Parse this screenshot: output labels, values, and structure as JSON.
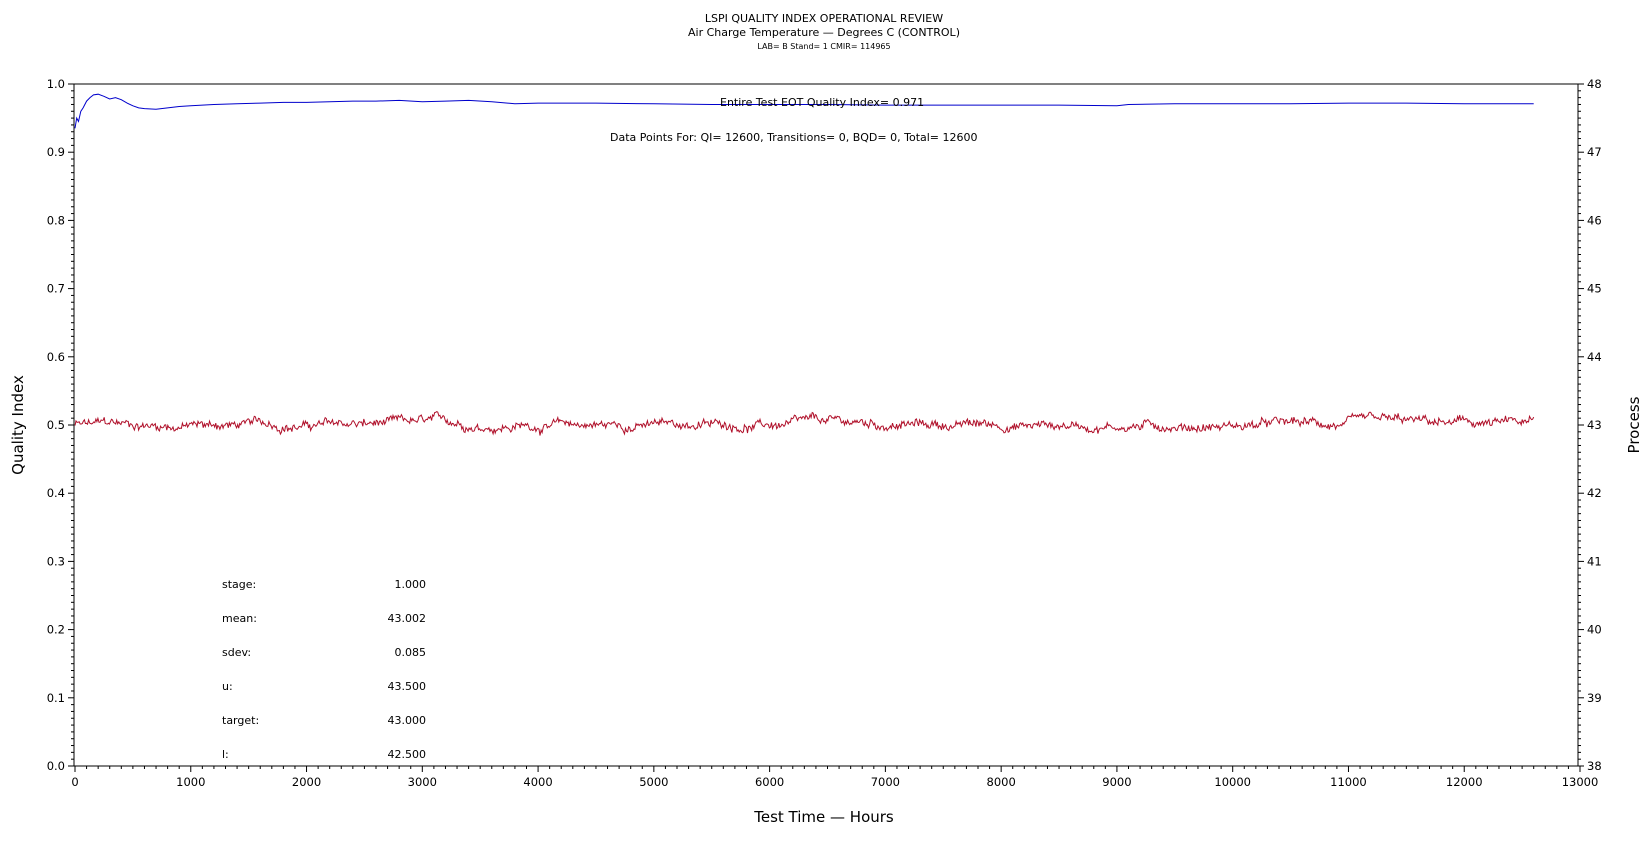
{
  "chart_data": {
    "type": "line",
    "title": "LSPI QUALITY INDEX OPERATIONAL REVIEW",
    "subtitle": "Air Charge Temperature — Degrees C (CONTROL)",
    "subsubtitle": "LAB= B Stand= 1 CMIR= 114965",
    "xlabel": "Test Time — Hours",
    "ylabel_left": "Quality Index",
    "ylabel_right": "Process",
    "xlim": [
      0,
      13000
    ],
    "ylim_left": [
      0.0,
      1.0
    ],
    "ylim_right": [
      38,
      48
    ],
    "x_ticks": [
      "0",
      "1000",
      "2000",
      "3000",
      "4000",
      "5000",
      "6000",
      "7000",
      "8000",
      "9000",
      "10000",
      "11000",
      "12000",
      "13000"
    ],
    "y_left_ticks": [
      "0.0",
      "0.1",
      "0.2",
      "0.3",
      "0.4",
      "0.5",
      "0.6",
      "0.7",
      "0.8",
      "0.9",
      "1.0"
    ],
    "y_right_ticks": [
      "38",
      "39",
      "40",
      "41",
      "42",
      "43",
      "44",
      "45",
      "46",
      "47",
      "48"
    ],
    "grid": false,
    "annotations": {
      "eot_quality_index": "Entire Test EOT Quality Index=   0.971",
      "data_points": "Data Points For: QI= 12600, Transitions=      0, BQD=      0, Total= 12600"
    },
    "stats": [
      {
        "label": "stage:",
        "value": "1.000"
      },
      {
        "label": "mean:",
        "value": "43.002"
      },
      {
        "label": "sdev:",
        "value": "0.085"
      },
      {
        "label": "u:",
        "value": "43.500"
      },
      {
        "label": "target:",
        "value": "43.000"
      },
      {
        "label": "l:",
        "value": "42.500"
      }
    ],
    "series": [
      {
        "axis": "left",
        "color": "#0000cc",
        "x": [
          0,
          15,
          30,
          50,
          70,
          100,
          130,
          160,
          200,
          250,
          300,
          350,
          400,
          450,
          500,
          550,
          600,
          700,
          800,
          900,
          1000,
          1200,
          1400,
          1600,
          1800,
          2000,
          2200,
          2400,
          2600,
          2800,
          3000,
          3200,
          3400,
          3600,
          3800,
          4000,
          4500,
          5000,
          5500,
          6000,
          6500,
          7000,
          7500,
          8000,
          8500,
          9000,
          9100,
          9500,
          10000,
          10500,
          11000,
          11500,
          12000,
          12600
        ],
        "values": [
          0.935,
          0.95,
          0.945,
          0.96,
          0.965,
          0.975,
          0.98,
          0.984,
          0.985,
          0.982,
          0.978,
          0.98,
          0.977,
          0.972,
          0.968,
          0.965,
          0.964,
          0.963,
          0.965,
          0.967,
          0.968,
          0.97,
          0.971,
          0.972,
          0.973,
          0.973,
          0.974,
          0.975,
          0.975,
          0.976,
          0.974,
          0.975,
          0.976,
          0.974,
          0.971,
          0.972,
          0.972,
          0.971,
          0.97,
          0.97,
          0.97,
          0.969,
          0.969,
          0.969,
          0.969,
          0.968,
          0.97,
          0.971,
          0.971,
          0.971,
          0.972,
          0.972,
          0.971,
          0.971
        ]
      },
      {
        "axis": "right",
        "color": "#b0102a",
        "x_start": 0,
        "x_end": 12600,
        "points": 1400,
        "mean": 43.002,
        "sdev": 0.085,
        "values_note": "noisy trace around target 43.0 within ~42.7 to 43.3"
      }
    ]
  }
}
